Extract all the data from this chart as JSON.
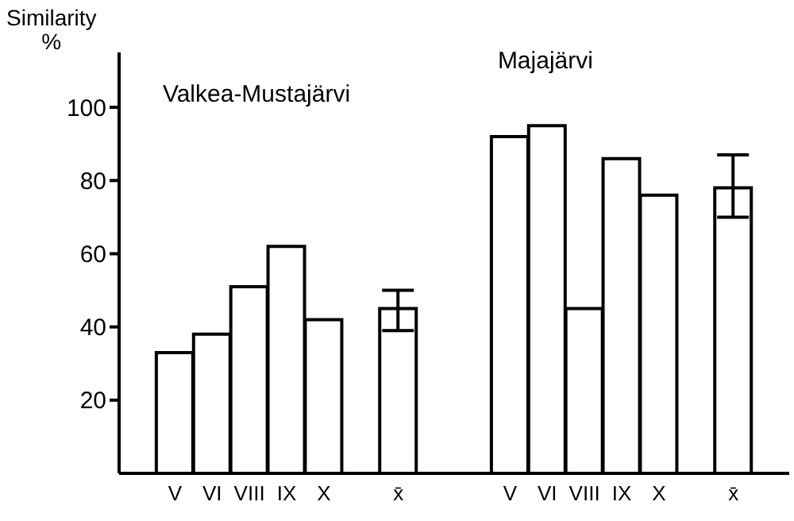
{
  "chart_data": {
    "type": "bar",
    "ylabel": "Similarity %",
    "annotations": [
      "Valkea-Mustajärvi",
      "Majajärvi"
    ],
    "categories": [
      null,
      "V",
      "VI",
      "VIII",
      "IX",
      "X",
      null,
      "x̄",
      null,
      null,
      "V",
      "VI",
      "VIII",
      "IX",
      "X",
      null,
      "x̄",
      null
    ],
    "series": [
      {
        "color": "#ffffff",
        "values": [
          null,
          33,
          38,
          51,
          62,
          42,
          null,
          45,
          null,
          null,
          92,
          95,
          45,
          86,
          76,
          null,
          78,
          null
        ],
        "errors": [
          null,
          null,
          null,
          null,
          null,
          null,
          null,
          [
            39,
            50
          ],
          null,
          null,
          null,
          null,
          null,
          null,
          null,
          null,
          [
            70,
            87
          ],
          null
        ]
      }
    ],
    "ylim": [
      0,
      115
    ],
    "yticks": [
      20,
      40,
      60,
      80,
      100
    ],
    "grid": false,
    "legend": false
  }
}
